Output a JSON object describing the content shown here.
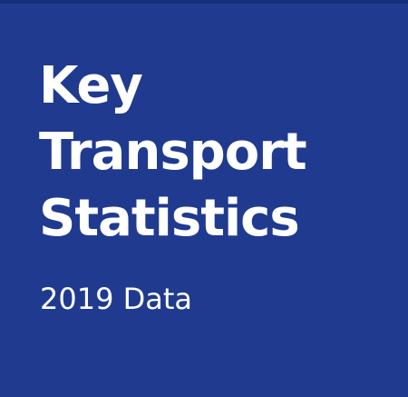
{
  "cover": {
    "title_lines": [
      "Key",
      "Transport",
      "Statistics"
    ],
    "subtitle": "2019 Data"
  },
  "colors": {
    "background": "#1f3a8f",
    "top_strip": "#17307a",
    "text": "#ffffff"
  }
}
